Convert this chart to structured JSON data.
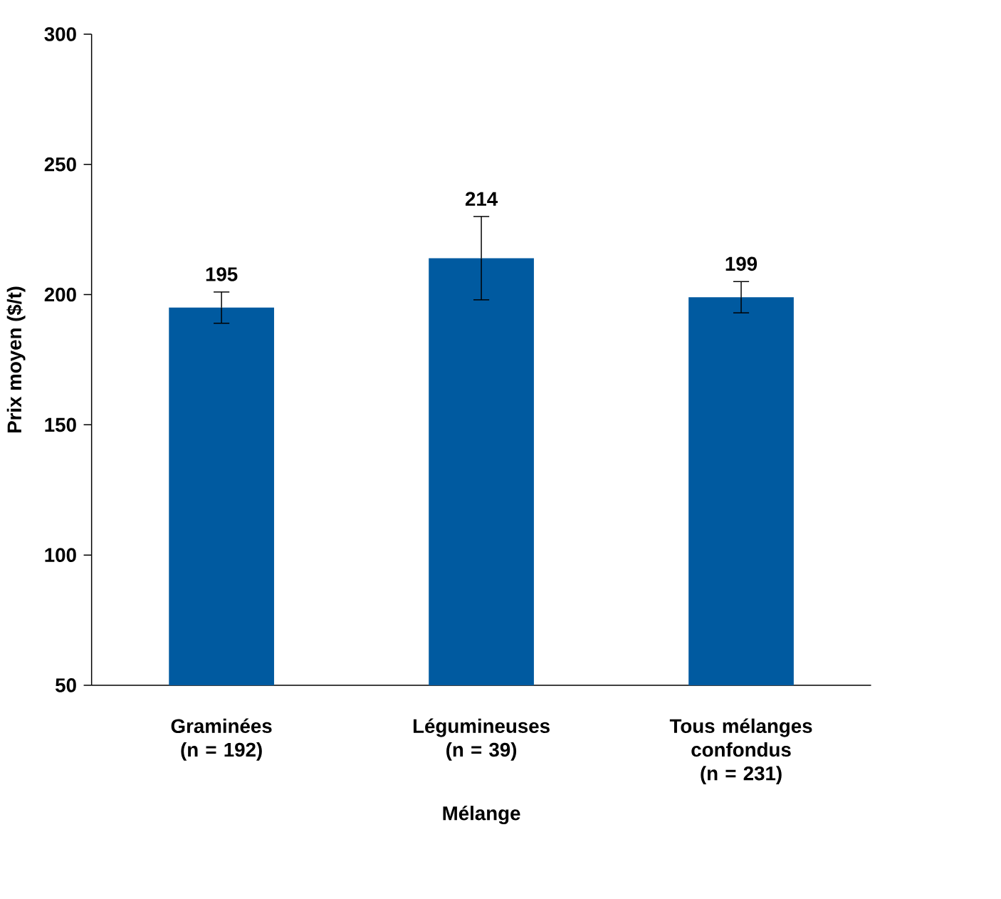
{
  "chart_data": {
    "type": "bar",
    "categories": [
      "Graminées (n = 192)",
      "Légumineuses (n = 39)",
      "Tous mélanges confondus (n = 231)"
    ],
    "values": [
      195,
      214,
      199
    ],
    "errors": [
      6,
      16,
      6
    ],
    "color": "#005aa0",
    "xlabel": "Mélange",
    "ylabel": "Prix moyen ($/t)",
    "ylim": [
      50,
      300
    ],
    "yticks": [
      50,
      100,
      150,
      200,
      250,
      300
    ],
    "data_labels": true
  }
}
